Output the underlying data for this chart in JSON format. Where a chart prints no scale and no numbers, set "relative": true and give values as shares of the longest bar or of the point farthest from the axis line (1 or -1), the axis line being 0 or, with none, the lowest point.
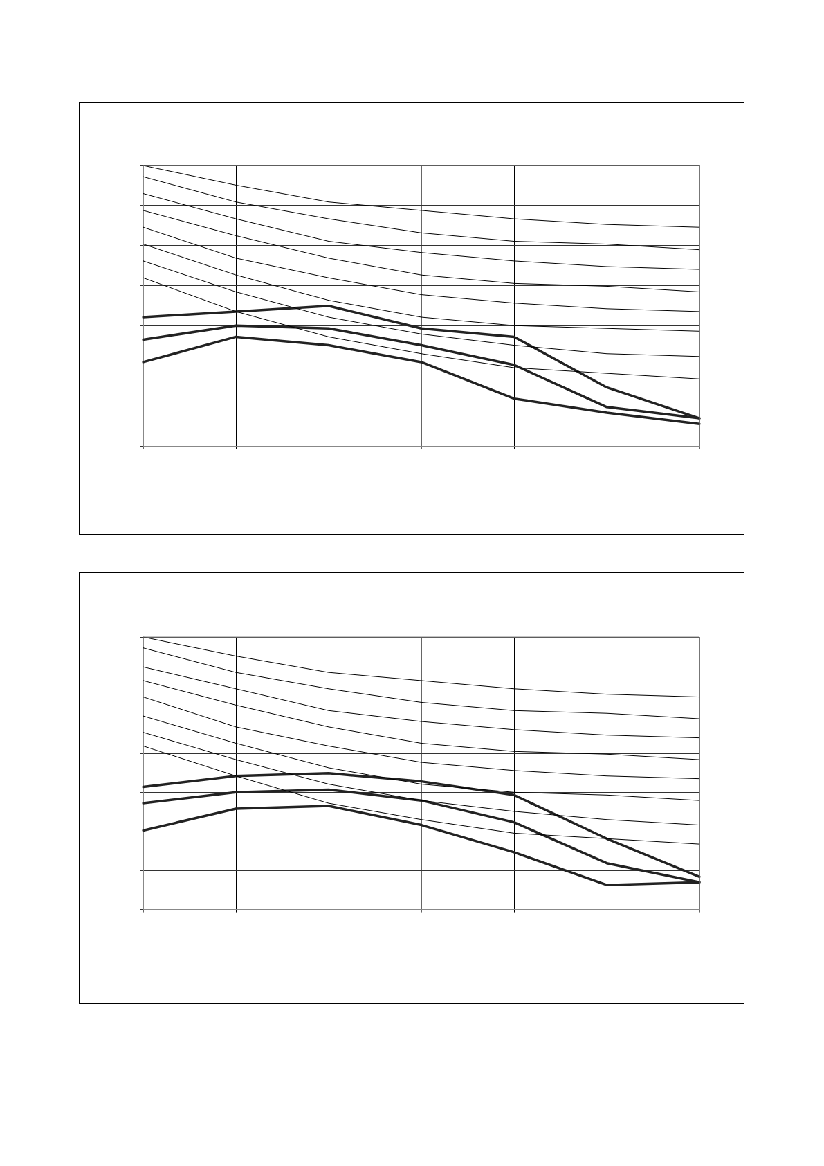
{
  "chart_data": [
    {
      "type": "line",
      "relative": true,
      "grid": true,
      "legend": false,
      "marker": "none",
      "line_style": "solid",
      "categories": [
        null,
        null,
        null,
        null,
        null,
        null,
        null
      ],
      "series": [
        {
          "color": "#000000",
          "values": [
            1,
            0.93,
            0.87,
            0.84,
            0.81,
            0.79,
            0.78
          ]
        },
        {
          "color": "#000000",
          "values": [
            0.96,
            0.87,
            0.81,
            0.76,
            0.73,
            0.72,
            0.7
          ]
        },
        {
          "color": "#000000",
          "values": [
            0.9,
            0.81,
            0.73,
            0.69,
            0.66,
            0.64,
            0.63
          ]
        },
        {
          "color": "#000000",
          "values": [
            0.84,
            0.75,
            0.67,
            0.61,
            0.58,
            0.57,
            0.55
          ]
        },
        {
          "color": "#000000",
          "values": [
            0.78,
            0.67,
            0.6,
            0.54,
            0.51,
            0.49,
            0.48
          ]
        },
        {
          "color": "#000000",
          "values": [
            0.72,
            0.61,
            0.52,
            0.46,
            0.43,
            0.42,
            0.41
          ]
        },
        {
          "color": "#000000",
          "values": [
            0.66,
            0.55,
            0.46,
            0.4,
            0.36,
            0.33,
            0.32
          ]
        },
        {
          "color": "#000000",
          "values": [
            0.6,
            0.48,
            0.39,
            0.33,
            0.28,
            0.26,
            0.24
          ]
        },
        {
          "color": "#222222",
          "values": [
            0.46,
            0.48,
            0.5,
            0.42,
            0.39,
            0.21,
            0.1
          ]
        },
        {
          "color": "#222222",
          "values": [
            0.38,
            0.43,
            0.42,
            0.36,
            0.29,
            0.14,
            0.1
          ]
        },
        {
          "color": "#222222",
          "values": [
            0.3,
            0.39,
            0.36,
            0.3,
            0.17,
            0.12,
            0.08
          ]
        }
      ]
    },
    {
      "type": "line",
      "relative": true,
      "grid": true,
      "legend": false,
      "marker": "none",
      "line_style": "solid",
      "categories": [
        null,
        null,
        null,
        null,
        null,
        null,
        null
      ],
      "series": [
        {
          "color": "#000000",
          "values": [
            1,
            0.93,
            0.87,
            0.84,
            0.81,
            0.79,
            0.78
          ]
        },
        {
          "color": "#000000",
          "values": [
            0.96,
            0.87,
            0.81,
            0.76,
            0.73,
            0.72,
            0.7
          ]
        },
        {
          "color": "#000000",
          "values": [
            0.89,
            0.81,
            0.73,
            0.69,
            0.66,
            0.64,
            0.63
          ]
        },
        {
          "color": "#000000",
          "values": [
            0.84,
            0.75,
            0.67,
            0.61,
            0.58,
            0.57,
            0.55
          ]
        },
        {
          "color": "#000000",
          "values": [
            0.78,
            0.67,
            0.6,
            0.54,
            0.51,
            0.49,
            0.48
          ]
        },
        {
          "color": "#000000",
          "values": [
            0.71,
            0.61,
            0.52,
            0.46,
            0.43,
            0.42,
            0.4
          ]
        },
        {
          "color": "#000000",
          "values": [
            0.65,
            0.55,
            0.46,
            0.4,
            0.36,
            0.33,
            0.31
          ]
        },
        {
          "color": "#000000",
          "values": [
            0.6,
            0.49,
            0.39,
            0.33,
            0.28,
            0.26,
            0.24
          ]
        },
        {
          "color": "#222222",
          "values": [
            0.45,
            0.49,
            0.5,
            0.47,
            0.42,
            0.26,
            0.12
          ]
        },
        {
          "color": "#222222",
          "values": [
            0.39,
            0.43,
            0.44,
            0.4,
            0.32,
            0.17,
            0.1
          ]
        },
        {
          "color": "#222222",
          "values": [
            0.29,
            0.37,
            0.38,
            0.31,
            0.21,
            0.09,
            0.1
          ]
        }
      ]
    }
  ]
}
